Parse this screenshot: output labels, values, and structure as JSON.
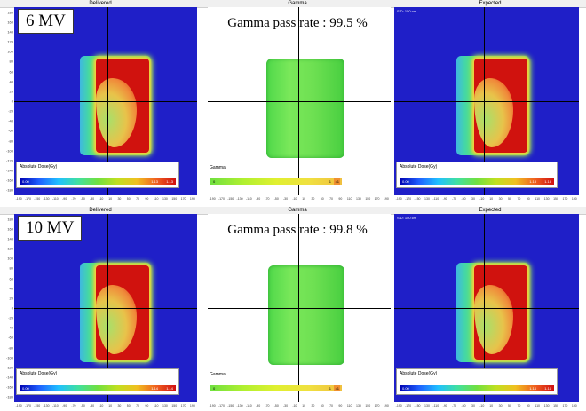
{
  "panel_titles": {
    "delivered": "Delivered",
    "gamma": "Gamma",
    "expected": "Expected"
  },
  "y_ticks": [
    "180",
    "160",
    "140",
    "120",
    "100",
    "80",
    "60",
    "40",
    "20",
    "0",
    "-20",
    "-40",
    "-60",
    "-80",
    "-100",
    "-120",
    "-140",
    "-160",
    "-180"
  ],
  "x_ticks": [
    "-190",
    "-170",
    "-150",
    "-130",
    "-110",
    "-90",
    "-70",
    "-50",
    "-30",
    "-10",
    "10",
    "30",
    "50",
    "70",
    "90",
    "110",
    "130",
    "150",
    "170",
    "190"
  ],
  "sid_label": "SID: 150 cm",
  "dose_legend_label": "Absolute Dose(Gy)",
  "gamma_legend_label": "Gamma",
  "rows": [
    {
      "energy": "6 MV",
      "gamma_pass_rate": "Gamma pass rate : 99.5 %",
      "dose_min": "0.00",
      "dose_mid": "1.13",
      "dose_max": "1.13",
      "gamma_min": "0",
      "gamma_mid": "1",
      "gamma_max": ">1"
    },
    {
      "energy": "10 MV",
      "gamma_pass_rate": "Gamma pass rate : 99.8 %",
      "dose_min": "0.00",
      "dose_mid": "1.14",
      "dose_max": "1.14",
      "gamma_min": "0",
      "gamma_mid": "1",
      "gamma_max": ">1"
    }
  ],
  "colors": {
    "background_blue": "#1f1fc8",
    "field_red": "#d0120e",
    "gamma_green": "#6ee052"
  }
}
